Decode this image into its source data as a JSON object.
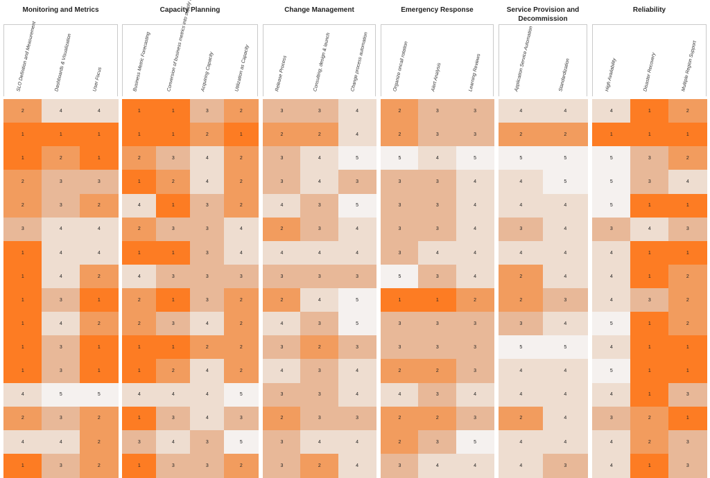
{
  "chart_data": {
    "type": "heatmap",
    "color_scale": {
      "1": "#fd7c23",
      "2": "#f29c5e",
      "3": "#e8b898",
      "4": "#eeddd0",
      "5": "#f5f1ef"
    },
    "groups": [
      {
        "title": "Monitoring and Metrics",
        "columns": [
          "SLO Definition and Measurement",
          "Dashboards & Visualization",
          "User Focus"
        ],
        "values": [
          [
            2,
            4,
            4
          ],
          [
            1,
            1,
            1
          ],
          [
            1,
            2,
            1
          ],
          [
            2,
            3,
            3
          ],
          [
            2,
            3,
            2
          ],
          [
            3,
            4,
            4
          ],
          [
            1,
            4,
            4
          ],
          [
            1,
            4,
            2
          ],
          [
            1,
            3,
            1
          ],
          [
            1,
            4,
            2
          ],
          [
            1,
            3,
            1
          ],
          [
            1,
            3,
            1
          ],
          [
            4,
            5,
            5
          ],
          [
            2,
            3,
            2
          ],
          [
            4,
            4,
            2
          ],
          [
            1,
            3,
            2
          ]
        ]
      },
      {
        "title": "Capacity Planning",
        "columns": [
          "Business Metric Forecasting",
          "Conversion of business metrics into supply metrics",
          "Acquiring Capacity",
          "Utilization as Capacity"
        ],
        "values": [
          [
            1,
            1,
            3,
            2
          ],
          [
            1,
            1,
            2,
            1
          ],
          [
            2,
            3,
            4,
            2
          ],
          [
            1,
            2,
            4,
            2
          ],
          [
            4,
            1,
            3,
            2
          ],
          [
            2,
            3,
            3,
            4
          ],
          [
            1,
            1,
            3,
            4
          ],
          [
            4,
            3,
            3,
            3
          ],
          [
            2,
            1,
            3,
            2
          ],
          [
            2,
            3,
            4,
            2
          ],
          [
            1,
            1,
            2,
            2
          ],
          [
            1,
            2,
            4,
            2
          ],
          [
            4,
            4,
            4,
            5
          ],
          [
            1,
            3,
            4,
            3
          ],
          [
            3,
            4,
            3,
            5
          ],
          [
            1,
            3,
            3,
            2
          ]
        ]
      },
      {
        "title": "Change Management",
        "columns": [
          "Release Process",
          "Consulting, design & launch",
          "Change process automation"
        ],
        "values": [
          [
            3,
            3,
            4
          ],
          [
            2,
            2,
            4
          ],
          [
            3,
            4,
            5
          ],
          [
            3,
            4,
            3
          ],
          [
            4,
            3,
            5
          ],
          [
            2,
            3,
            4
          ],
          [
            4,
            4,
            4
          ],
          [
            3,
            3,
            3
          ],
          [
            2,
            4,
            5
          ],
          [
            4,
            3,
            5
          ],
          [
            3,
            2,
            3
          ],
          [
            4,
            3,
            4
          ],
          [
            3,
            3,
            4
          ],
          [
            2,
            3,
            3
          ],
          [
            3,
            4,
            4
          ],
          [
            3,
            2,
            4
          ]
        ]
      },
      {
        "title": "Emergency Response",
        "columns": [
          "Organize oncall rotation",
          "Alert Analysis",
          "Learning Reviews"
        ],
        "values": [
          [
            2,
            3,
            3
          ],
          [
            2,
            3,
            3
          ],
          [
            5,
            4,
            5
          ],
          [
            3,
            3,
            4
          ],
          [
            3,
            3,
            4
          ],
          [
            3,
            3,
            4
          ],
          [
            3,
            4,
            4
          ],
          [
            5,
            3,
            4
          ],
          [
            1,
            1,
            2
          ],
          [
            3,
            3,
            3
          ],
          [
            3,
            3,
            3
          ],
          [
            2,
            2,
            3
          ],
          [
            4,
            3,
            4
          ],
          [
            2,
            2,
            3
          ],
          [
            2,
            3,
            5
          ],
          [
            3,
            4,
            4
          ]
        ]
      },
      {
        "title": "Service Provision and Decommission",
        "columns": [
          "Application Service Automation",
          "Standardization"
        ],
        "values": [
          [
            4,
            4
          ],
          [
            2,
            2
          ],
          [
            5,
            5
          ],
          [
            4,
            5
          ],
          [
            4,
            4
          ],
          [
            3,
            4
          ],
          [
            4,
            4
          ],
          [
            2,
            4
          ],
          [
            2,
            3
          ],
          [
            3,
            4
          ],
          [
            5,
            5
          ],
          [
            4,
            4
          ],
          [
            4,
            4
          ],
          [
            2,
            4
          ],
          [
            4,
            4
          ],
          [
            4,
            3
          ]
        ]
      },
      {
        "title": "Reliability",
        "columns": [
          "High Availability",
          "Disaster Recovery",
          "Multiple Region Support"
        ],
        "values": [
          [
            4,
            1,
            2
          ],
          [
            1,
            1,
            1
          ],
          [
            5,
            3,
            2
          ],
          [
            5,
            3,
            4
          ],
          [
            5,
            1,
            1
          ],
          [
            3,
            4,
            3
          ],
          [
            4,
            1,
            1
          ],
          [
            4,
            1,
            2
          ],
          [
            4,
            3,
            2
          ],
          [
            5,
            1,
            2
          ],
          [
            4,
            1,
            1
          ],
          [
            5,
            1,
            1
          ],
          [
            4,
            1,
            3
          ],
          [
            3,
            2,
            1
          ],
          [
            4,
            2,
            3
          ],
          [
            4,
            1,
            3
          ]
        ]
      }
    ]
  }
}
